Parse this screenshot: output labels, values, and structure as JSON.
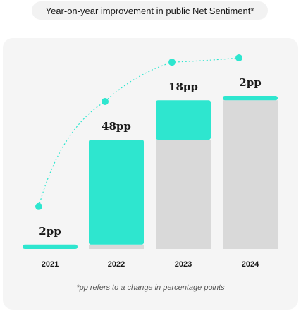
{
  "chart_data": {
    "type": "bar",
    "title": "Year-on-year improvement in public Net Sentiment*",
    "categories": [
      "2021",
      "2022",
      "2023",
      "2024"
    ],
    "increments": [
      2,
      48,
      18,
      2
    ],
    "data_labels": [
      "2pp",
      "48pp",
      "18pp",
      "2pp"
    ],
    "unit": "pp",
    "ylim": [
      0,
      70
    ],
    "footnote": "*pp refers to a change in percentage points",
    "xlabel": "",
    "ylabel": ""
  },
  "colors": {
    "accent": "#2ee6cf",
    "base": "#d9d9d9",
    "card": "#f5f5f5",
    "text": "#1a1a1a"
  }
}
